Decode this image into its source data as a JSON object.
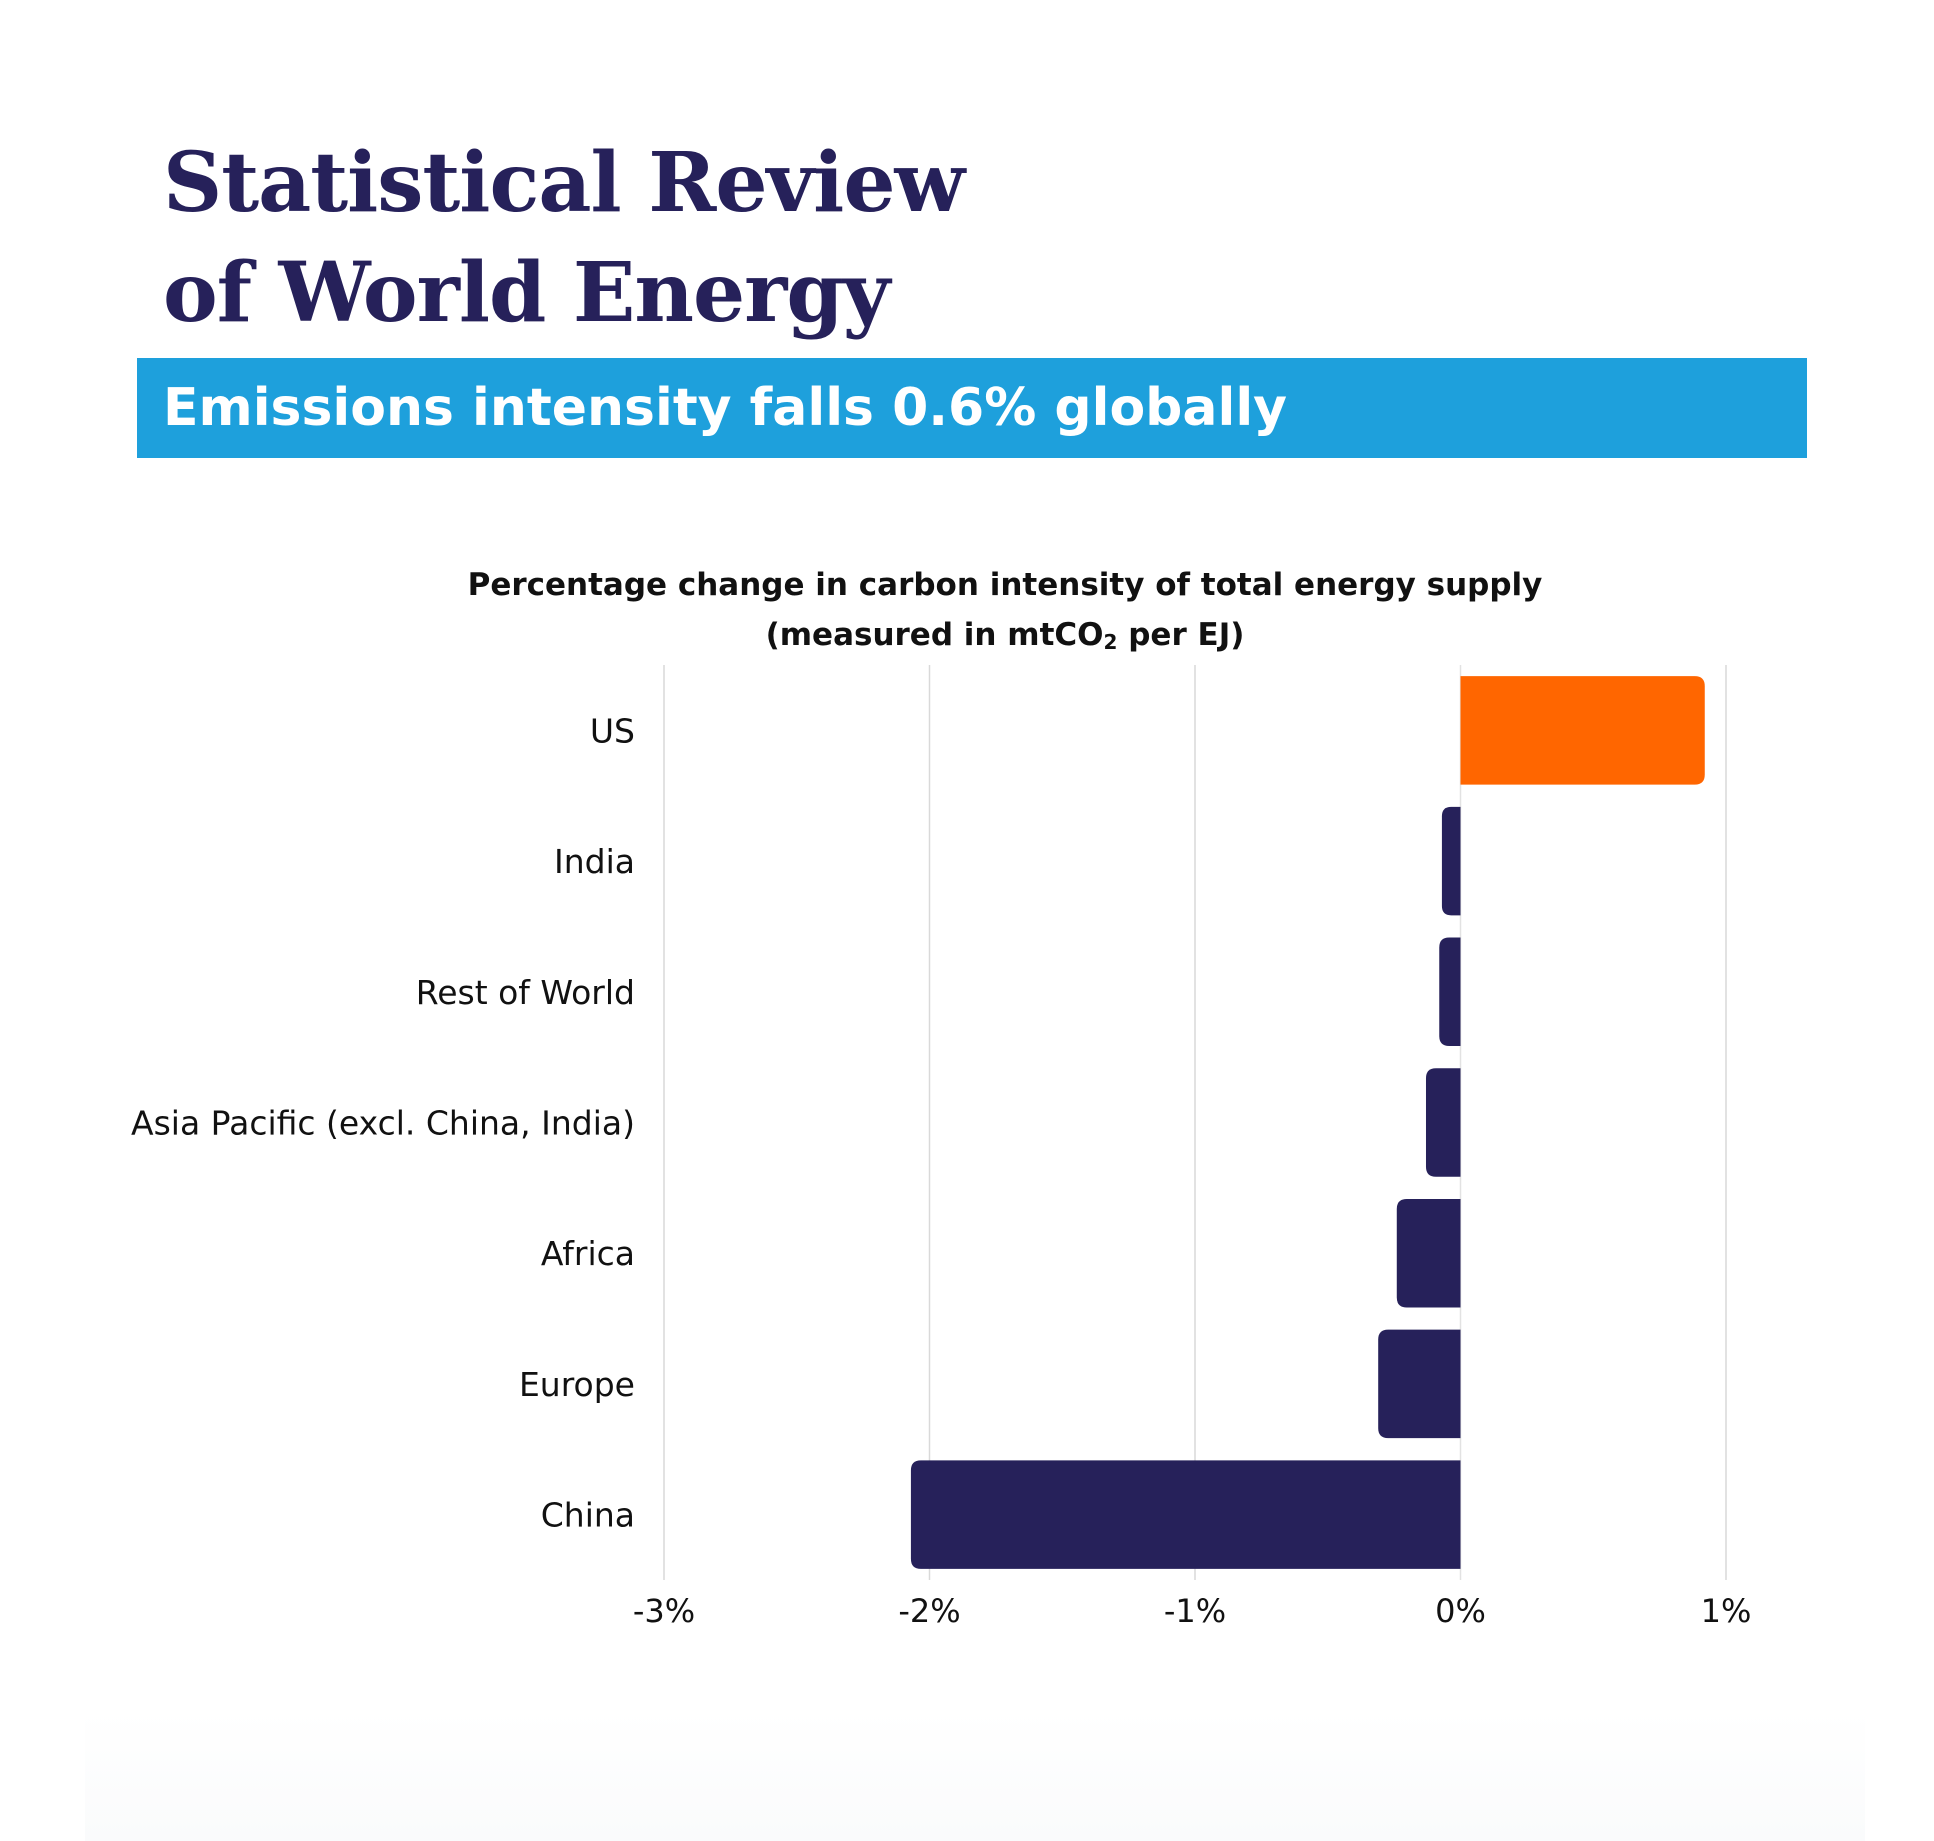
{
  "header": {
    "brand_line1": "Statistical Review",
    "brand_line2": "of World Energy",
    "headline": "Emissions intensity falls 0.6% globally"
  },
  "chart_data": {
    "type": "bar",
    "orientation": "horizontal",
    "title_line1": "Percentage change in carbon intensity of total energy supply",
    "title_line2_prefix": "(measured in mtCO",
    "title_line2_sub": "2",
    "title_line2_suffix": " per EJ)",
    "categories": [
      "US",
      "India",
      "Rest of World",
      "Asia Pacific (excl. China, India)",
      "Africa",
      "Europe",
      "China"
    ],
    "values": [
      0.92,
      -0.07,
      -0.08,
      -0.13,
      -0.24,
      -0.31,
      -2.07
    ],
    "unit": "%",
    "xlim": [
      -3,
      1
    ],
    "xticks": [
      -3,
      -2,
      -1,
      0,
      1
    ],
    "xtick_labels": [
      "-3%",
      "-2%",
      "-1%",
      "0%",
      "1%"
    ],
    "grid": true,
    "colors": {
      "positive": "#ff6600",
      "negative": "#26215a",
      "grid": "#d9d9d9",
      "zero_line": "#e2e2e2"
    }
  }
}
